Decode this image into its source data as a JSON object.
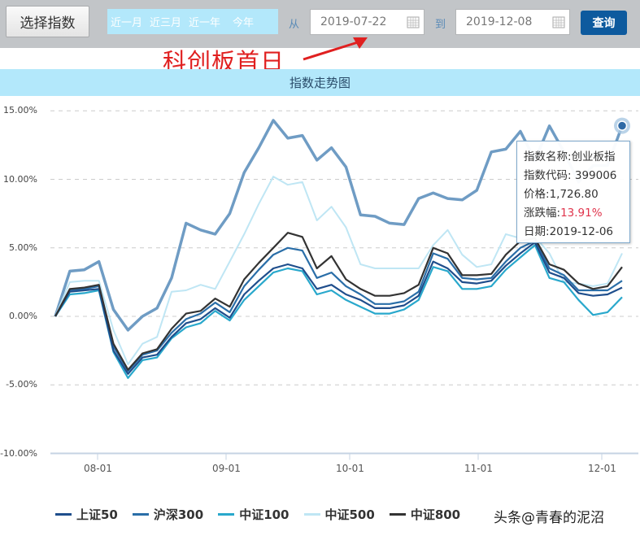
{
  "toolbar": {
    "select_index_label": "选择指数",
    "quick_ranges": [
      "近一月",
      "近三月",
      "近一年",
      "今年"
    ],
    "from_label": "从",
    "from_date": "2019-07-22",
    "to_label": "到",
    "to_date": "2019-12-08",
    "query_label": "查询"
  },
  "annotation": {
    "text": "科创板首日",
    "color": "#e02020"
  },
  "chart_title": "指数走势图",
  "tooltip": {
    "name_label": "指数名称:",
    "name_value": "创业板指",
    "code_label": "指数代码:",
    "code_value": " 399006",
    "price_label": "价格:",
    "price_value": "1,726.80",
    "change_label": "涨跌幅:",
    "change_value": "13.91%",
    "date_label": "日期:",
    "date_value": "2019-12-06"
  },
  "watermark": "头条@青春的泥沼",
  "chart_data": {
    "type": "line",
    "title": "指数走势图",
    "xlabel": "",
    "ylabel": "",
    "ylim": [
      -10,
      15
    ],
    "yticks": [
      "15.00%",
      "10.00%",
      "5.00%",
      "0.00%",
      "-5.00%",
      "-10.00%"
    ],
    "xticks": [
      "08-01",
      "09-01",
      "10-01",
      "11-01",
      "12-01"
    ],
    "grid": true,
    "legend_position": "bottom",
    "x": [
      "07-22",
      "07-25",
      "07-29",
      "08-01",
      "08-05",
      "08-07",
      "08-09",
      "08-12",
      "08-14",
      "08-16",
      "08-20",
      "08-23",
      "08-27",
      "08-30",
      "09-03",
      "09-06",
      "09-10",
      "09-12",
      "09-17",
      "09-20",
      "09-24",
      "09-27",
      "09-30",
      "10-09",
      "10-14",
      "10-17",
      "10-21",
      "10-24",
      "10-28",
      "10-31",
      "11-04",
      "11-07",
      "11-12",
      "11-15",
      "11-19",
      "11-22",
      "11-26",
      "11-29",
      "12-03",
      "12-06"
    ],
    "series": [
      {
        "name": "上证50",
        "color": "#1f4e8c",
        "values": [
          0.0,
          1.8,
          1.9,
          2.0,
          -2.5,
          -4.2,
          -3.0,
          -2.8,
          -1.5,
          -0.5,
          -0.2,
          0.6,
          -0.1,
          1.6,
          2.6,
          3.5,
          3.8,
          3.5,
          2.0,
          2.3,
          1.6,
          1.2,
          0.6,
          0.6,
          0.8,
          1.5,
          4.0,
          3.5,
          2.5,
          2.4,
          2.6,
          3.7,
          4.6,
          5.4,
          3.2,
          2.8,
          1.7,
          1.5,
          1.6,
          2.1
        ]
      },
      {
        "name": "沪深300",
        "color": "#2a6ea8",
        "values": [
          0.0,
          1.9,
          2.0,
          2.2,
          -2.2,
          -4.0,
          -2.8,
          -2.5,
          -1.2,
          -0.2,
          0.2,
          1.0,
          0.3,
          2.2,
          3.4,
          4.5,
          5.0,
          4.8,
          2.8,
          3.2,
          2.2,
          1.6,
          0.9,
          0.9,
          1.1,
          1.8,
          4.6,
          4.2,
          2.8,
          2.7,
          2.8,
          4.0,
          5.0,
          5.5,
          3.5,
          3.0,
          1.9,
          1.9,
          1.9,
          2.6
        ]
      },
      {
        "name": "中证100",
        "color": "#29a8cc",
        "values": [
          0.0,
          1.6,
          1.7,
          1.9,
          -2.6,
          -4.5,
          -3.2,
          -3.0,
          -1.6,
          -0.8,
          -0.5,
          0.4,
          -0.3,
          1.2,
          2.2,
          3.2,
          3.5,
          3.3,
          1.6,
          1.9,
          1.2,
          0.7,
          0.2,
          0.2,
          0.5,
          1.2,
          3.6,
          3.3,
          2.0,
          2.0,
          2.2,
          3.4,
          4.3,
          5.2,
          2.8,
          2.5,
          1.2,
          0.1,
          0.3,
          1.4
        ]
      },
      {
        "name": "中证500",
        "color": "#bfe6f4",
        "values": [
          0.0,
          2.5,
          2.6,
          2.6,
          -1.0,
          -3.5,
          -2.0,
          -1.5,
          1.8,
          1.9,
          2.3,
          2.0,
          4.0,
          6.0,
          8.2,
          10.2,
          9.6,
          9.8,
          7.0,
          8.0,
          6.5,
          3.8,
          3.5,
          3.5,
          3.5,
          3.5,
          5.2,
          6.3,
          4.5,
          3.6,
          3.8,
          6.0,
          5.7,
          5.8,
          4.6,
          2.5,
          2.4,
          2.2,
          2.4,
          4.6
        ]
      },
      {
        "name": "中证800",
        "color": "#333333",
        "values": [
          0.0,
          2.0,
          2.1,
          2.3,
          -2.0,
          -3.9,
          -2.7,
          -2.4,
          -0.9,
          0.2,
          0.4,
          1.3,
          0.7,
          2.7,
          3.9,
          5.0,
          6.1,
          5.8,
          3.5,
          4.4,
          2.7,
          2.0,
          1.5,
          1.5,
          1.7,
          2.3,
          5.0,
          4.6,
          3.0,
          3.0,
          3.1,
          4.5,
          5.5,
          5.7,
          3.8,
          3.4,
          2.4,
          2.0,
          2.2,
          3.6
        ]
      },
      {
        "name": "创业板指",
        "color": "#6f9cc4",
        "values": [
          0.0,
          3.3,
          3.4,
          4.0,
          0.5,
          -1.0,
          0.0,
          0.6,
          2.8,
          6.8,
          6.3,
          6.0,
          7.5,
          10.5,
          12.3,
          14.3,
          13.0,
          13.2,
          11.4,
          12.3,
          10.9,
          7.4,
          7.3,
          6.8,
          6.7,
          8.6,
          9.0,
          8.6,
          8.5,
          9.2,
          12.0,
          12.2,
          13.5,
          11.4,
          13.9,
          12.0,
          9.8,
          11.0,
          11.0,
          13.91
        ]
      }
    ]
  },
  "legend": [
    {
      "label": "上证50",
      "color": "#1f4e8c"
    },
    {
      "label": "沪深300",
      "color": "#2a6ea8"
    },
    {
      "label": "中证100",
      "color": "#29a8cc"
    },
    {
      "label": "中证500",
      "color": "#bfe6f4"
    },
    {
      "label": "中证800",
      "color": "#333333"
    }
  ]
}
